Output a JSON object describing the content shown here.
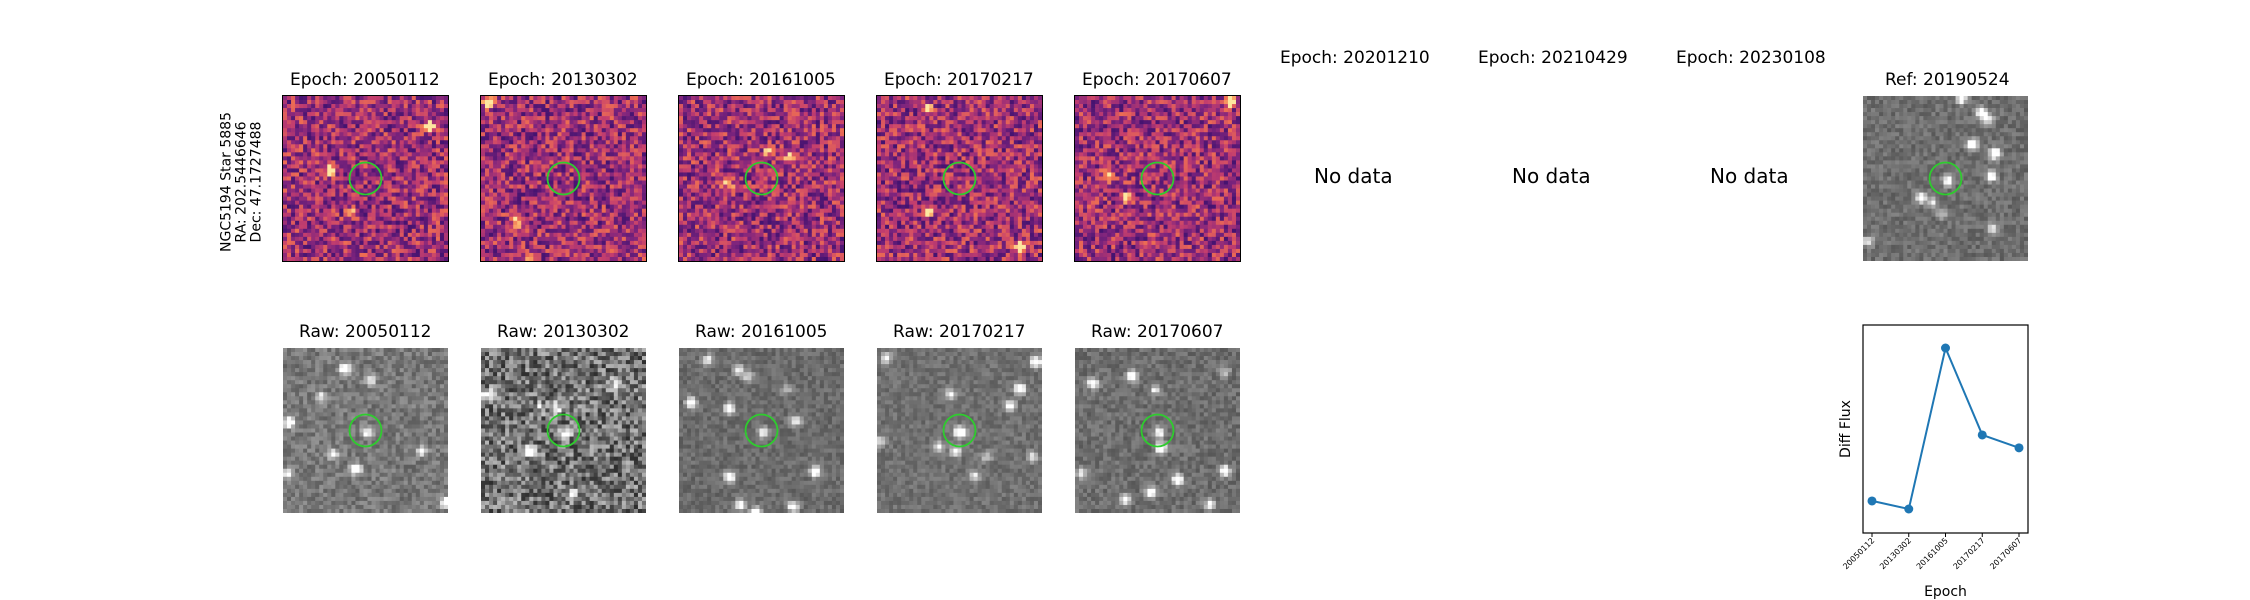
{
  "star_label": [
    "NGC5194 Star 5885",
    "RA: 202.5446646",
    "Dec: 47.1727488"
  ],
  "diff_panels": [
    {
      "title": "Epoch: 20050112",
      "has_data": true
    },
    {
      "title": "Epoch: 20130302",
      "has_data": true
    },
    {
      "title": "Epoch: 20161005",
      "has_data": true
    },
    {
      "title": "Epoch: 20170217",
      "has_data": true
    },
    {
      "title": "Epoch: 20170607",
      "has_data": true
    },
    {
      "title": "Epoch: 20201210",
      "has_data": false
    },
    {
      "title": "Epoch: 20210429",
      "has_data": false
    },
    {
      "title": "Epoch: 20230108",
      "has_data": false
    }
  ],
  "no_data_text": "No data",
  "ref_panel": {
    "title": "Ref: 20190524"
  },
  "raw_panels": [
    {
      "title": "Raw: 20050112"
    },
    {
      "title": "Raw: 20130302"
    },
    {
      "title": "Raw: 20161005"
    },
    {
      "title": "Raw: 20170217"
    },
    {
      "title": "Raw: 20170607"
    }
  ],
  "colors": {
    "aperture": "#2ecc2e",
    "line": "#1f77b4",
    "colormap": "magma"
  },
  "chart_data": {
    "type": "line",
    "xlabel": "Epoch",
    "ylabel": "Diff Flux",
    "categories": [
      "20050112",
      "20130302",
      "20161005",
      "20170217",
      "20170607"
    ],
    "values": [
      0.05,
      0.0,
      1.0,
      0.46,
      0.38
    ],
    "y_ticks_shown": false,
    "grid": false
  }
}
